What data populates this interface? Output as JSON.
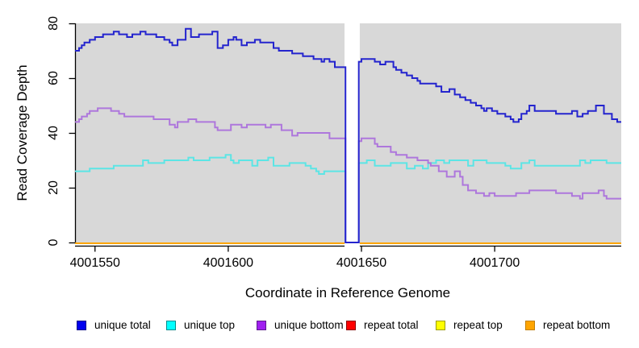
{
  "axes": {
    "x": {
      "label": "Coordinate in Reference Genome",
      "ticks": [
        4001550,
        4001600,
        4001650,
        4001700
      ],
      "tick_labels": [
        "4001550",
        "4001600",
        "4001650",
        "4001700"
      ],
      "range": [
        4001542.5,
        4001747.5
      ]
    },
    "y": {
      "label": "Read Coverage Depth",
      "ticks": [
        0,
        20,
        40,
        60,
        80
      ],
      "tick_labels": [
        "0",
        "20",
        "40",
        "60",
        "80"
      ],
      "range": [
        0,
        80
      ]
    }
  },
  "plot": {
    "background_color": "#D8D8D8",
    "gap_region": {
      "start": 4001644,
      "end": 4001649,
      "fill": "#FFFFFF"
    }
  },
  "chart_data": {
    "type": "line",
    "subtype": "step",
    "title": "",
    "xlabel": "Coordinate in Reference Genome",
    "ylabel": "Read Coverage Depth",
    "xlim": [
      4001542.5,
      4001747.5
    ],
    "ylim": [
      0,
      80
    ],
    "x_ticks": [
      4001550,
      4001600,
      4001650,
      4001700
    ],
    "y_ticks": [
      0,
      20,
      40,
      60,
      80
    ],
    "grid": false,
    "legend_position": "bottom",
    "gap_region": {
      "start": 4001644,
      "end": 4001649
    },
    "series": [
      {
        "name": "unique total",
        "color": "#2424CE",
        "legend_fill": "#0000EE",
        "legend_border": "#00008B",
        "baseline": false,
        "points": [
          [
            4001542.5,
            70
          ],
          [
            4001544,
            71
          ],
          [
            4001545,
            72
          ],
          [
            4001546,
            73
          ],
          [
            4001548,
            74
          ],
          [
            4001550,
            75
          ],
          [
            4001553,
            76
          ],
          [
            4001557,
            77
          ],
          [
            4001559,
            76
          ],
          [
            4001562,
            75
          ],
          [
            4001564,
            76
          ],
          [
            4001567,
            77
          ],
          [
            4001569,
            76
          ],
          [
            4001573,
            75
          ],
          [
            4001576,
            74
          ],
          [
            4001578,
            73
          ],
          [
            4001579,
            72
          ],
          [
            4001581,
            74
          ],
          [
            4001584,
            78
          ],
          [
            4001586,
            75
          ],
          [
            4001589,
            76
          ],
          [
            4001594,
            77
          ],
          [
            4001596,
            71
          ],
          [
            4001598,
            72
          ],
          [
            4001600,
            74
          ],
          [
            4001602,
            75
          ],
          [
            4001603,
            74
          ],
          [
            4001605,
            72
          ],
          [
            4001607,
            73
          ],
          [
            4001610,
            74
          ],
          [
            4001612,
            73
          ],
          [
            4001617,
            71
          ],
          [
            4001619,
            70
          ],
          [
            4001624,
            69
          ],
          [
            4001628,
            68
          ],
          [
            4001632,
            67
          ],
          [
            4001635,
            66
          ],
          [
            4001636,
            67
          ],
          [
            4001638,
            66
          ],
          [
            4001640,
            64
          ],
          [
            4001644,
            0
          ],
          [
            4001649,
            66
          ],
          [
            4001650,
            67
          ],
          [
            4001655,
            66
          ],
          [
            4001657,
            65
          ],
          [
            4001659,
            66
          ],
          [
            4001662,
            64
          ],
          [
            4001663,
            63
          ],
          [
            4001665,
            62
          ],
          [
            4001667,
            61
          ],
          [
            4001669,
            60
          ],
          [
            4001671,
            59
          ],
          [
            4001672,
            58
          ],
          [
            4001678,
            57
          ],
          [
            4001680,
            55
          ],
          [
            4001683,
            56
          ],
          [
            4001685,
            54
          ],
          [
            4001687,
            53
          ],
          [
            4001689,
            52
          ],
          [
            4001691,
            51
          ],
          [
            4001693,
            50
          ],
          [
            4001695,
            49
          ],
          [
            4001696,
            48
          ],
          [
            4001697,
            49
          ],
          [
            4001699,
            48
          ],
          [
            4001701,
            47
          ],
          [
            4001704,
            46
          ],
          [
            4001706,
            45
          ],
          [
            4001707,
            44
          ],
          [
            4001709,
            45
          ],
          [
            4001710,
            47
          ],
          [
            4001712,
            48
          ],
          [
            4001713,
            50
          ],
          [
            4001715,
            48
          ],
          [
            4001723,
            47
          ],
          [
            4001729,
            48
          ],
          [
            4001731,
            46
          ],
          [
            4001733,
            47
          ],
          [
            4001735,
            48
          ],
          [
            4001738,
            50
          ],
          [
            4001741,
            47
          ],
          [
            4001744,
            45
          ],
          [
            4001746,
            44
          ]
        ]
      },
      {
        "name": "unique top",
        "color": "#5CE5E5",
        "legend_fill": "#00FFFF",
        "legend_border": "#008B8B",
        "baseline": false,
        "points": [
          [
            4001542.5,
            26
          ],
          [
            4001548,
            27
          ],
          [
            4001557,
            28
          ],
          [
            4001568,
            30
          ],
          [
            4001570,
            29
          ],
          [
            4001576,
            30
          ],
          [
            4001585,
            31
          ],
          [
            4001587,
            30
          ],
          [
            4001593,
            31
          ],
          [
            4001599,
            32
          ],
          [
            4001601,
            30
          ],
          [
            4001602,
            29
          ],
          [
            4001604,
            30
          ],
          [
            4001609,
            28
          ],
          [
            4001611,
            30
          ],
          [
            4001615,
            31
          ],
          [
            4001617,
            28
          ],
          [
            4001623,
            29
          ],
          [
            4001629,
            28
          ],
          [
            4001631,
            27
          ],
          [
            4001633,
            26
          ],
          [
            4001634,
            25
          ],
          [
            4001636,
            26
          ],
          [
            4001644,
            0
          ],
          [
            4001649,
            29
          ],
          [
            4001652,
            30
          ],
          [
            4001655,
            28
          ],
          [
            4001661,
            29
          ],
          [
            4001667,
            27
          ],
          [
            4001670,
            28
          ],
          [
            4001673,
            27
          ],
          [
            4001675,
            29
          ],
          [
            4001678,
            30
          ],
          [
            4001681,
            29
          ],
          [
            4001683,
            30
          ],
          [
            4001690,
            28
          ],
          [
            4001692,
            30
          ],
          [
            4001697,
            29
          ],
          [
            4001704,
            28
          ],
          [
            4001706,
            27
          ],
          [
            4001710,
            29
          ],
          [
            4001713,
            30
          ],
          [
            4001715,
            28
          ],
          [
            4001732,
            30
          ],
          [
            4001734,
            29
          ],
          [
            4001736,
            30
          ],
          [
            4001742,
            29
          ]
        ]
      },
      {
        "name": "unique bottom",
        "color": "#AE77DC",
        "legend_fill": "#A020F0",
        "legend_border": "#5E1B8F",
        "baseline": false,
        "points": [
          [
            4001542.5,
            44
          ],
          [
            4001544,
            45
          ],
          [
            4001545,
            46
          ],
          [
            4001547,
            47
          ],
          [
            4001548,
            48
          ],
          [
            4001551,
            49
          ],
          [
            4001556,
            48
          ],
          [
            4001559,
            47
          ],
          [
            4001561,
            46
          ],
          [
            4001572,
            45
          ],
          [
            4001578,
            43
          ],
          [
            4001580,
            42
          ],
          [
            4001581,
            44
          ],
          [
            4001585,
            45
          ],
          [
            4001588,
            44
          ],
          [
            4001595,
            42
          ],
          [
            4001596,
            41
          ],
          [
            4001601,
            43
          ],
          [
            4001605,
            42
          ],
          [
            4001607,
            43
          ],
          [
            4001614,
            42
          ],
          [
            4001616,
            43
          ],
          [
            4001620,
            41
          ],
          [
            4001624,
            39
          ],
          [
            4001626,
            40
          ],
          [
            4001638,
            38
          ],
          [
            4001644,
            0
          ],
          [
            4001649,
            37
          ],
          [
            4001650,
            38
          ],
          [
            4001655,
            36
          ],
          [
            4001656,
            35
          ],
          [
            4001661,
            33
          ],
          [
            4001663,
            32
          ],
          [
            4001667,
            31
          ],
          [
            4001671,
            30
          ],
          [
            4001675,
            29
          ],
          [
            4001676,
            28
          ],
          [
            4001679,
            26
          ],
          [
            4001682,
            24
          ],
          [
            4001685,
            26
          ],
          [
            4001687,
            24
          ],
          [
            4001688,
            21
          ],
          [
            4001690,
            19
          ],
          [
            4001693,
            18
          ],
          [
            4001696,
            17
          ],
          [
            4001698,
            18
          ],
          [
            4001700,
            17
          ],
          [
            4001708,
            18
          ],
          [
            4001713,
            19
          ],
          [
            4001723,
            18
          ],
          [
            4001729,
            17
          ],
          [
            4001732,
            16
          ],
          [
            4001733,
            18
          ],
          [
            4001739,
            19
          ],
          [
            4001741,
            17
          ],
          [
            4001742,
            16
          ]
        ]
      },
      {
        "name": "repeat total",
        "color": "#DD0000",
        "legend_fill": "#FF0000",
        "legend_border": "#8B0000",
        "baseline": true,
        "points": [
          [
            4001542.5,
            0
          ],
          [
            4001747.5,
            0
          ]
        ]
      },
      {
        "name": "repeat top",
        "color": "#F0E000",
        "legend_fill": "#FFFF00",
        "legend_border": "#9B9B00",
        "baseline": true,
        "points": [
          [
            4001542.5,
            0
          ],
          [
            4001747.5,
            0
          ]
        ]
      },
      {
        "name": "repeat bottom",
        "color": "#FFA500",
        "legend_fill": "#FFA500",
        "legend_border": "#C27E00",
        "baseline": true,
        "points": [
          [
            4001542.5,
            0
          ],
          [
            4001747.5,
            0
          ]
        ]
      }
    ]
  }
}
